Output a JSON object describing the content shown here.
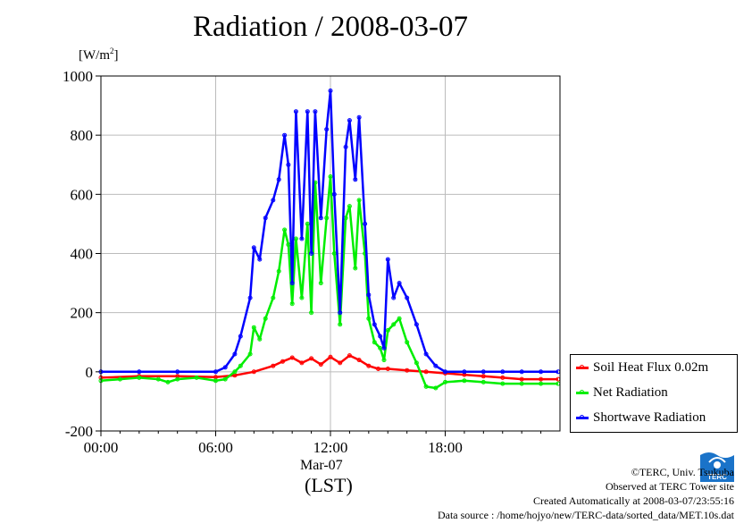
{
  "title": "Radiation / 2008-03-07",
  "unit_base": "[W/m",
  "unit_exp": "2",
  "unit_close": "]",
  "x_date_label": "Mar-07",
  "x_lst_label": "(LST)",
  "footer": {
    "line1": "©TERC, Univ. Tsukuba",
    "line2": "Observed at TERC Tower site",
    "line3": "Created Automatically at 2008-03-07/23:55:16",
    "line4": "Data source : /home/hojyo/new/TERC-data/sorted_data/MET.10s.dat"
  },
  "logo_text": "TERC",
  "legend": [
    {
      "label": "Soil Heat Flux 0.02m",
      "color": "#ff0000"
    },
    {
      "label": "Net Radiation",
      "color": "#00ee00"
    },
    {
      "label": "Shortwave Radiation",
      "color": "#0000ff"
    }
  ],
  "chart_data": {
    "type": "line",
    "title": "Radiation / 2008-03-07",
    "ylabel": "[W/m2]",
    "xlabel": "Mar-07 (LST)",
    "ylim": [
      -200,
      1000
    ],
    "yticks": [
      -200,
      0,
      200,
      400,
      600,
      800,
      1000
    ],
    "xlim_hours": [
      0,
      24
    ],
    "xticks": [
      {
        "h": 0,
        "label": "00:00"
      },
      {
        "h": 6,
        "label": "06:00"
      },
      {
        "h": 12,
        "label": "12:00"
      },
      {
        "h": 18,
        "label": "18:00"
      }
    ],
    "grid": true,
    "legend_position": "bottom-right, outside",
    "series": [
      {
        "name": "Soil Heat Flux 0.02m",
        "color": "#ff0000",
        "x": [
          0,
          2,
          4,
          6,
          7,
          8,
          9,
          9.5,
          10,
          10.5,
          11,
          11.5,
          12,
          12.5,
          13,
          13.5,
          14,
          14.5,
          15,
          16,
          17,
          18,
          19,
          20,
          21,
          22,
          23,
          23.9
        ],
        "y": [
          -20,
          -15,
          -15,
          -18,
          -12,
          0,
          20,
          35,
          48,
          30,
          45,
          25,
          50,
          30,
          55,
          40,
          20,
          10,
          10,
          5,
          0,
          -5,
          -10,
          -15,
          -20,
          -25,
          -25,
          -25
        ]
      },
      {
        "name": "Net Radiation",
        "color": "#00ee00",
        "x": [
          0,
          1,
          2,
          3,
          3.5,
          4,
          5,
          6,
          6.5,
          7,
          7.3,
          7.8,
          8,
          8.3,
          8.6,
          9,
          9.3,
          9.6,
          9.8,
          10,
          10.2,
          10.5,
          10.8,
          11,
          11.2,
          11.5,
          11.8,
          12,
          12.2,
          12.5,
          12.8,
          13,
          13.3,
          13.5,
          13.8,
          14,
          14.3,
          14.6,
          14.8,
          15,
          15.3,
          15.6,
          16,
          16.5,
          17,
          17.5,
          18,
          19,
          20,
          21,
          22,
          23,
          23.9
        ],
        "y": [
          -30,
          -25,
          -20,
          -25,
          -35,
          -25,
          -20,
          -30,
          -25,
          0,
          20,
          60,
          150,
          110,
          180,
          250,
          340,
          480,
          430,
          230,
          450,
          250,
          500,
          200,
          640,
          300,
          520,
          660,
          400,
          160,
          520,
          560,
          350,
          580,
          400,
          180,
          100,
          80,
          40,
          140,
          160,
          180,
          100,
          30,
          -50,
          -55,
          -35,
          -30,
          -35,
          -40,
          -40,
          -40,
          -40
        ]
      },
      {
        "name": "Shortwave Radiation",
        "color": "#0000ff",
        "x": [
          0,
          2,
          4,
          6,
          6.5,
          7,
          7.3,
          7.8,
          8,
          8.3,
          8.6,
          9,
          9.3,
          9.6,
          9.8,
          10,
          10.2,
          10.5,
          10.8,
          11,
          11.2,
          11.5,
          11.8,
          12,
          12.2,
          12.5,
          12.8,
          13,
          13.3,
          13.5,
          13.8,
          14,
          14.3,
          14.6,
          14.8,
          15,
          15.3,
          15.6,
          16,
          16.5,
          17,
          17.5,
          18,
          19,
          20,
          21,
          22,
          23,
          23.9
        ],
        "y": [
          0,
          0,
          0,
          0,
          15,
          60,
          120,
          250,
          420,
          380,
          520,
          580,
          650,
          800,
          700,
          300,
          880,
          450,
          880,
          400,
          880,
          520,
          820,
          950,
          600,
          200,
          760,
          850,
          650,
          860,
          500,
          260,
          160,
          120,
          80,
          380,
          250,
          300,
          250,
          160,
          60,
          20,
          0,
          0,
          0,
          0,
          0,
          0,
          0
        ]
      }
    ]
  }
}
